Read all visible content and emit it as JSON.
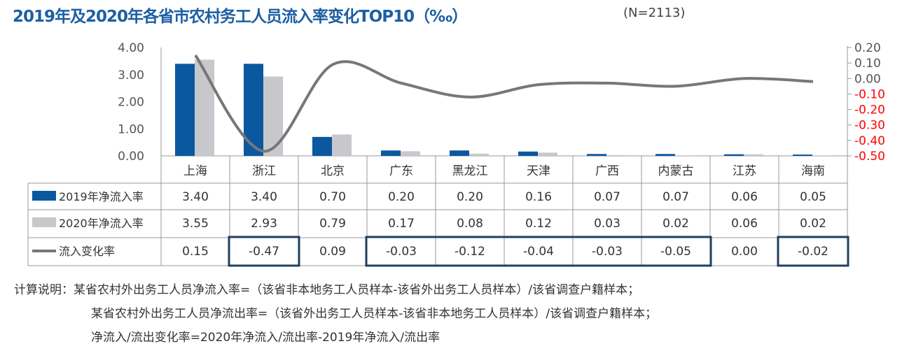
{
  "title": "2019年及2020年各省市农村务工人员流入率变化TOP10（‰）",
  "sample": "(N=2113)",
  "chart_data": {
    "type": "bar",
    "categories": [
      "上海",
      "浙江",
      "北京",
      "广东",
      "黑龙江",
      "天津",
      "广西",
      "内蒙古",
      "江苏",
      "海南"
    ],
    "series": [
      {
        "name": "2019年净流入率",
        "type": "bar",
        "axis": "left",
        "color": "#0a58a0",
        "values": [
          3.4,
          3.4,
          0.7,
          0.2,
          0.2,
          0.16,
          0.07,
          0.07,
          0.06,
          0.05
        ]
      },
      {
        "name": "2020年净流入率",
        "type": "bar",
        "axis": "left",
        "color": "#c6c8cb",
        "values": [
          3.55,
          2.93,
          0.79,
          0.17,
          0.08,
          0.12,
          0.03,
          0.02,
          0.06,
          0.02
        ]
      },
      {
        "name": "流入变化率",
        "type": "line",
        "axis": "right",
        "color": "#777777",
        "values": [
          0.15,
          -0.47,
          0.09,
          -0.03,
          -0.12,
          -0.04,
          -0.03,
          -0.05,
          0.0,
          -0.02
        ]
      }
    ],
    "ylim_left": [
      0,
      4
    ],
    "yticks_left": [
      "4.00",
      "3.00",
      "2.00",
      "1.00",
      "0.00"
    ],
    "ylim_right": [
      -0.5,
      0.2
    ],
    "yticks_right": [
      "0.20",
      "0.10",
      "0.00",
      "-0.10",
      "-0.20",
      "-0.30",
      "-0.40",
      "-0.50"
    ],
    "negative_tick_color": "#ff0000",
    "data_table": true,
    "highlighted_cells": [
      "浙江",
      "广东",
      "黑龙江",
      "天津",
      "广西",
      "内蒙古",
      "海南"
    ],
    "highlight_color": "#1f3f5f"
  },
  "notes": [
    "计算说明：某省农村外出务工人员净流入率=（该省非本地务工人员样本-该省外出务工人员样本）/该省调查户籍样本；",
    "某省农村外出务工人员净流出率=（该省外出务工人员样本-该省非本地务工人员样本）/该省调查户籍样本；",
    "净流入/流出变化率=2020年净流入/流出率-2019年净流入/流出率"
  ]
}
